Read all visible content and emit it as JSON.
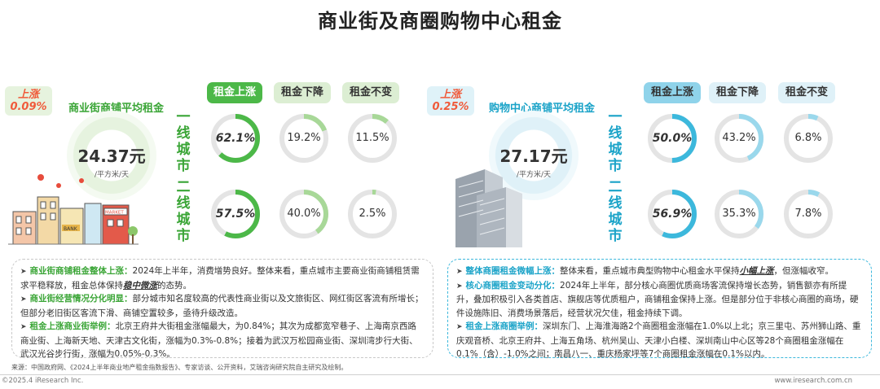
{
  "title": "商业街及商圈购物中心租金",
  "colors": {
    "green": "#4cb848",
    "green_light": "#dceed3",
    "blue": "#3cb8dc",
    "blue_light": "#dff1f8",
    "red": "#f05a3a"
  },
  "left": {
    "badge": {
      "line1": "上涨",
      "line2": "0.09%"
    },
    "avg_label": "商业街商铺平均租金",
    "price": "24.37元",
    "unit": "/平方米/天",
    "columns": [
      "租金上涨",
      "租金下降",
      "租金不变"
    ],
    "tier1_label": "一线城市",
    "tier2_label": "二线城市",
    "tier1": [
      {
        "label": "62.1%",
        "value": 62.1
      },
      {
        "label": "19.2%",
        "value": 19.2
      },
      {
        "label": "11.5%",
        "value": 11.5
      }
    ],
    "tier2": [
      {
        "label": "57.5%",
        "value": 57.5
      },
      {
        "label": "40.0%",
        "value": 40.0
      },
      {
        "label": "2.5%",
        "value": 2.5
      }
    ],
    "bank_sign": "BANK",
    "market_sign": "MARKET",
    "bullets": [
      {
        "lead": "商业街商铺租金整体上涨：",
        "text1": "2024年上半年，消费增势良好。整体来看，重点城市主要商业街商铺租赁需求平稳释放，租金总体保持",
        "emph": "稳中微涨",
        "text2": "的态势。"
      },
      {
        "lead": "商业街经营情况分化明显：",
        "text1": "部分城市知名度较高的代表性商业街以及文旅街区、网红街区客流有所增长；但部分老旧街区客流下滑、商铺空置较多，亟待升级改造。",
        "emph": "",
        "text2": ""
      },
      {
        "lead": "租金上涨商业街举例：",
        "text1": "北京王府井大街租金涨幅最大，为0.84%；其次为成都宽窄巷子、上海南京西路商业街、上海新天地、天津古文化街，涨幅为0.3%-0.8%；接着为武汉万松园商业街、深圳湾步行大街、武汉光谷步行街，涨幅为0.05%-0.3%。",
        "emph": "",
        "text2": ""
      }
    ]
  },
  "right": {
    "badge": {
      "line1": "上涨",
      "line2": "0.25%"
    },
    "avg_label": "购物中心商铺平均租金",
    "price": "27.17元",
    "unit": "/平方米/天",
    "columns": [
      "租金上涨",
      "租金下降",
      "租金不变"
    ],
    "tier1_label": "一线城市",
    "tier2_label": "二线城市",
    "tier1": [
      {
        "label": "50.0%",
        "value": 50.0
      },
      {
        "label": "43.2%",
        "value": 43.2
      },
      {
        "label": "6.8%",
        "value": 6.8
      }
    ],
    "tier2": [
      {
        "label": "56.9%",
        "value": 56.9
      },
      {
        "label": "35.3%",
        "value": 35.3
      },
      {
        "label": "7.8%",
        "value": 7.8
      }
    ],
    "bullets": [
      {
        "lead": "整体商圈租金微幅上涨：",
        "text1": "整体来看，重点城市典型购物中心租金水平保持",
        "emph": "小幅上涨",
        "text2": "，但涨幅收窄。"
      },
      {
        "lead": "核心商圈租金变动分化：",
        "text1": "2024年上半年，部分核心商圈优质商场客流保持增长态势，销售额亦有所提升，叠加积极引入各类首店、旗舰店等优质租户，商铺租金保持上涨。但是部分位于非核心商圈的商场，硬件设施陈旧、消费场景落后，经营状况欠佳，租金持续下调。",
        "emph": "",
        "text2": ""
      },
      {
        "lead": "租金上涨商圈举例：",
        "text1": "深圳东门、上海淮海路2个商圈租金涨幅在1.0%以上北；京三里屯、苏州狮山路、重庆观音桥、北京王府井、上海五角场、杭州吴山、天津小白楼、深圳南山中心区等28个商圈租金涨幅在0.1%（含）-1.0%之间；南昌八一、重庆杨家坪等7个商圈租金涨幅在0.1%以内。",
        "emph": "",
        "text2": ""
      }
    ]
  },
  "source": "来源：中国政府网、《2024上半年商业地产租金指数报告》、专家访谈、公开资料，艾瑞咨询研究院自主研究及绘制。",
  "copyright": "©2025.4 iResearch Inc.",
  "website": "www.iresearch.com.cn"
}
